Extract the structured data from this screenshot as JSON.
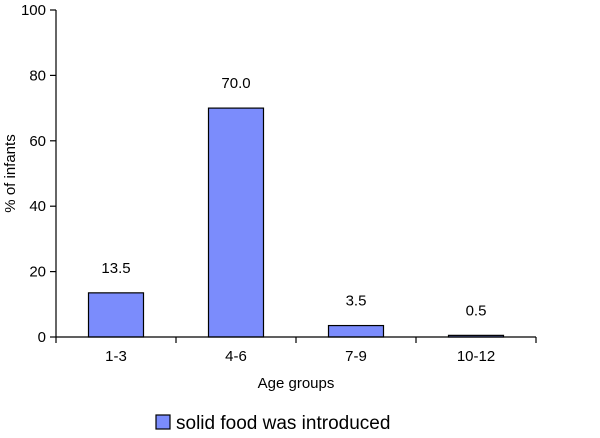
{
  "chart_data": {
    "type": "bar",
    "categories": [
      "1-3",
      "4-6",
      "7-9",
      "10-12"
    ],
    "series": [
      {
        "name": "solid food was introduced",
        "values": [
          13.5,
          70.0,
          3.5,
          0.5
        ],
        "color": "#7b8cfc"
      }
    ],
    "data_labels": [
      "13.5",
      "70.0",
      "3.5",
      "0.5"
    ],
    "xlabel": "Age groups",
    "ylabel": "% of infants",
    "ylim": [
      0,
      100
    ],
    "yticks": [
      0,
      20,
      40,
      60,
      80,
      100
    ],
    "grid": false,
    "legend_position": "bottom"
  }
}
